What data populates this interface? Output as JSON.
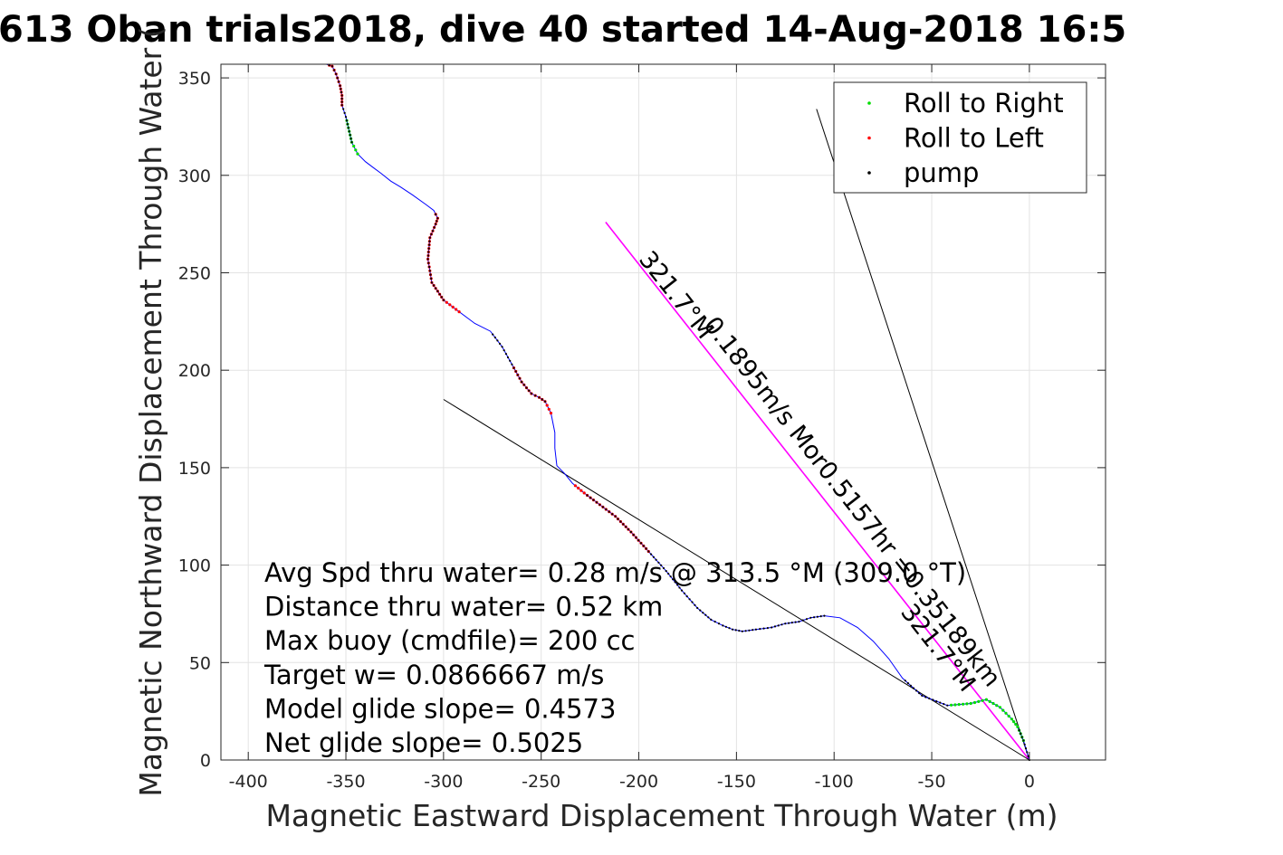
{
  "chart_data": {
    "type": "line",
    "title": "613 Oban trials2018, dive 40 started 14-Aug-2018 16:5",
    "xlabel": "Magnetic Eastward Displacement Through Water (m)",
    "ylabel": "Magnetic Northward Displacement Through Water (",
    "xlim": [
      -414,
      39
    ],
    "ylim": [
      0,
      357
    ],
    "xticks": [
      -400,
      -350,
      -300,
      -250,
      -200,
      -150,
      -100,
      -50,
      0
    ],
    "yticks": [
      0,
      50,
      100,
      150,
      200,
      250,
      300,
      350
    ],
    "grid": true,
    "legend_position": "top-right",
    "colors": {
      "track": "#0000ff",
      "roll_right": "#00dd00",
      "roll_left": "#ff0000",
      "pump": "#000000",
      "heading_line": "#ff00ff",
      "reference_lines": "#000000"
    },
    "legend": [
      {
        "label": "Roll to Right",
        "color": "#00dd00"
      },
      {
        "label": "Roll to Left",
        "color": "#ff0000"
      },
      {
        "label": "pump",
        "color": "#000000"
      }
    ],
    "series": [
      {
        "name": "track",
        "x": [
          0,
          -3,
          -6,
          -9,
          -15,
          -22,
          -30,
          -42,
          -55,
          -65,
          -72,
          -80,
          -88,
          -97,
          -105,
          -112,
          -118,
          -125,
          -132,
          -140,
          -147,
          -152,
          -157,
          -163,
          -170,
          -178,
          -186,
          -195,
          -204,
          -212,
          -220,
          -228,
          -234,
          -238,
          -242,
          -243,
          -243,
          -245,
          -248,
          -251,
          -255,
          -260,
          -265,
          -270,
          -276,
          -284,
          -292,
          -300,
          -306,
          -308,
          -307,
          -304,
          -303,
          -305,
          -309,
          -316,
          -322,
          -327,
          -332,
          -336,
          -340,
          -344,
          -347,
          -350,
          -352,
          -352,
          -353,
          -355,
          -357,
          -360,
          -365,
          -370,
          -376
        ],
        "y": [
          0,
          10,
          17,
          21,
          27,
          31,
          29,
          28,
          33,
          42,
          52,
          61,
          68,
          73,
          74,
          73,
          71,
          70,
          68,
          67,
          66,
          67,
          69,
          72,
          78,
          87,
          97,
          107,
          117,
          125,
          131,
          137,
          142,
          147,
          151,
          160,
          168,
          178,
          184,
          186,
          188,
          194,
          203,
          212,
          220,
          224,
          230,
          236,
          245,
          257,
          268,
          275,
          278,
          282,
          285,
          290,
          294,
          297,
          301,
          304,
          307,
          311,
          317,
          330,
          336,
          341,
          346,
          352,
          356,
          357,
          357,
          357,
          357
        ]
      },
      {
        "name": "heading line",
        "x": [
          0,
          -217
        ],
        "y": [
          0,
          276
        ]
      },
      {
        "name": "reference line 1",
        "x": [
          0,
          -300
        ],
        "y": [
          0,
          185
        ]
      },
      {
        "name": "reference line 2",
        "x": [
          0,
          -109
        ],
        "y": [
          0,
          334
        ]
      }
    ],
    "markers": {
      "roll_right_segments": [
        [
          1,
          7
        ],
        [
          61,
          63
        ]
      ],
      "roll_left_segments": [
        [
          27,
          32
        ],
        [
          37,
          42
        ],
        [
          46,
          53
        ],
        [
          64,
          69
        ]
      ],
      "pump_segments": [
        [
          0,
          2
        ],
        [
          7,
          9
        ],
        [
          14,
          31
        ],
        [
          38,
          44
        ],
        [
          47,
          53
        ],
        [
          62,
          69
        ]
      ]
    },
    "line_labels": [
      {
        "text": "0.1895m/s Mor0.5157hr =0.35189km",
        "at": [
          -94,
          130
        ],
        "angle_deg": 51.8
      },
      {
        "text": "321.7°M",
        "at": [
          -50,
          55
        ],
        "angle_deg": 51.8
      },
      {
        "text": "321.7°M",
        "at": [
          -184,
          236
        ],
        "angle_deg": 51.8
      }
    ],
    "annotations": [
      "Avg Spd thru water=  0.28 m/s @ 313.5  °M (309.0 °T)",
      "Distance thru water=  0.52 km",
      "Max buoy (cmdfile)= 200 cc",
      "Target w= 0.0866667 m/s",
      "Model glide slope= 0.4573",
      "Net glide slope= 0.5025"
    ]
  }
}
